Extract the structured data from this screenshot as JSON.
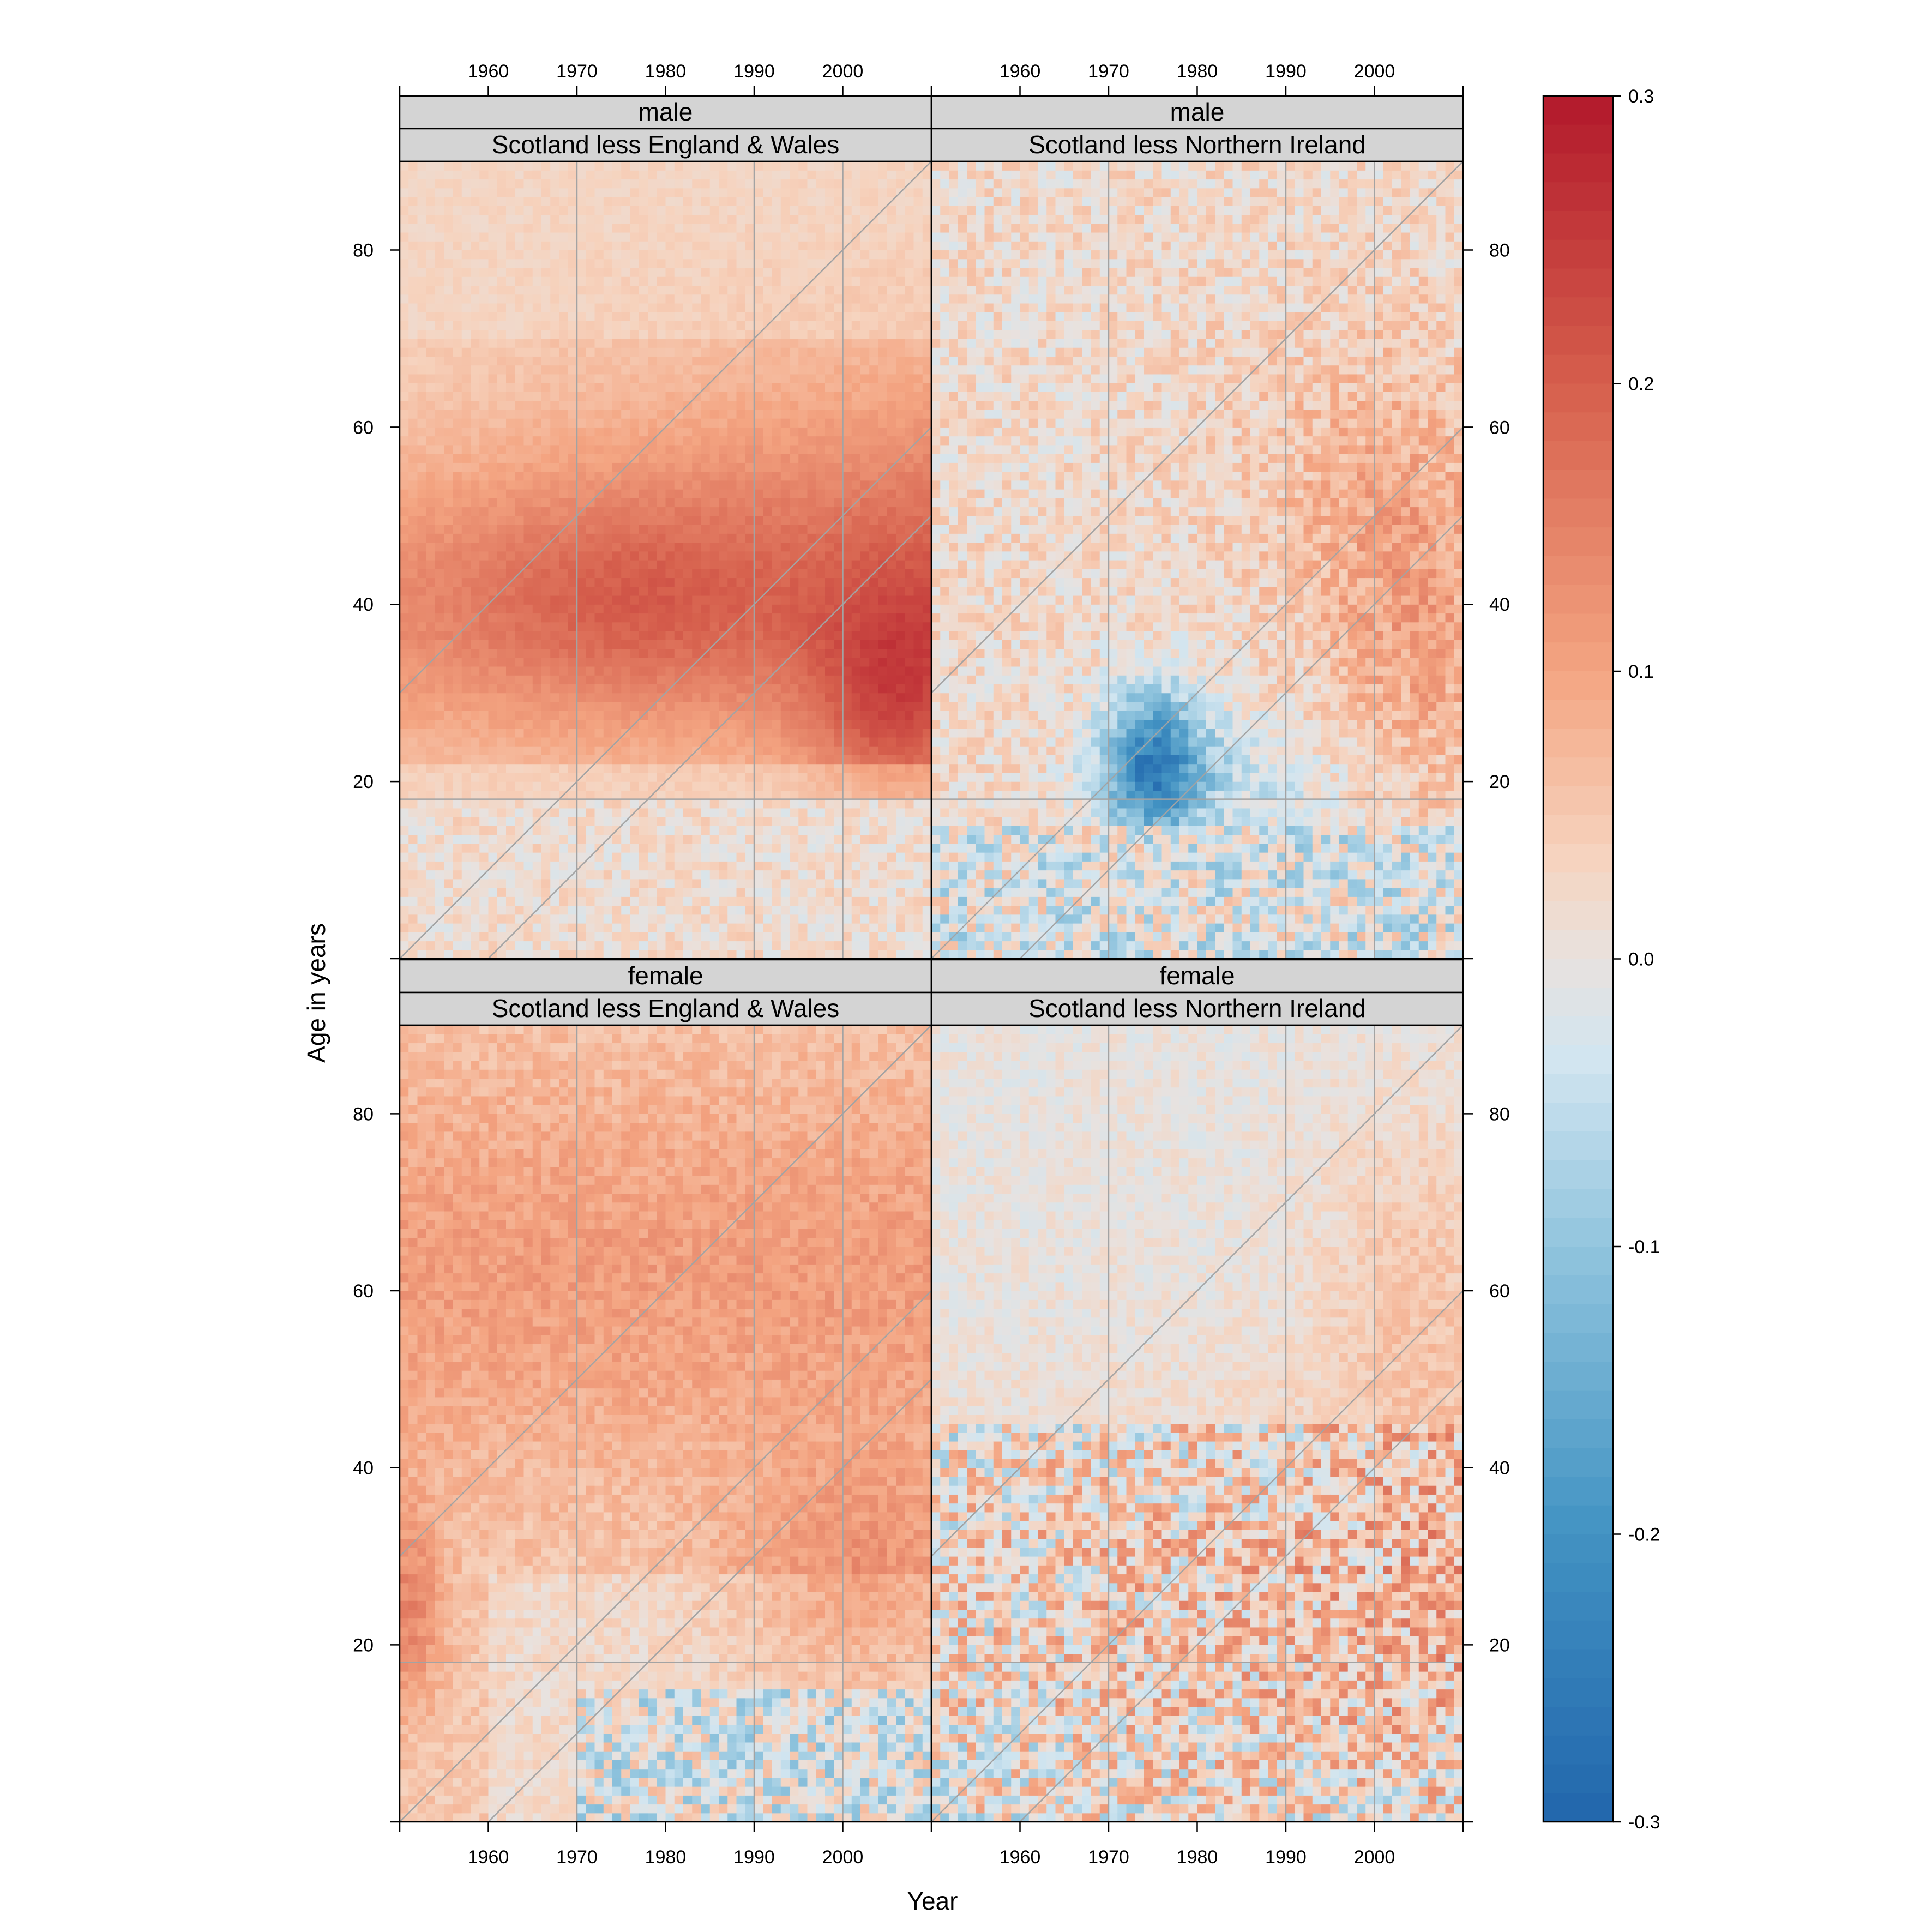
{
  "chart_data": {
    "type": "heatmap",
    "xlabel": "Year",
    "ylabel": "Age in years",
    "x_range": [
      1950,
      2010
    ],
    "y_range": [
      0,
      90
    ],
    "x_ticks": [
      1960,
      1970,
      1980,
      1990,
      2000
    ],
    "y_ticks": [
      20,
      40,
      60,
      80
    ],
    "grid": true,
    "reference_lines": {
      "vertical_years": [
        1970,
        1990,
        2000
      ],
      "horizontal_ages": [
        18
      ],
      "cohort_diagonals_birth_year": [
        1920,
        1950,
        1960
      ]
    },
    "colorbar": {
      "min": -0.3,
      "max": 0.3,
      "ticks": [
        -0.3,
        -0.2,
        -0.1,
        0.0,
        0.1,
        0.2,
        0.3
      ],
      "tick_labels": [
        "-0.3",
        "-0.2",
        "-0.1",
        "0.0",
        "0.1",
        "0.2",
        "0.3"
      ],
      "low_color": "#2166ac",
      "mid_color": "#e8e2df",
      "high_color": "#b2182b",
      "position": "right"
    },
    "panels": [
      {
        "sex": "male",
        "comparison": "Scotland less England & Wales",
        "approx_values": [
          {
            "years": "1950-2010",
            "ages": "70-90",
            "value": 0.04
          },
          {
            "years": "1950-1970",
            "ages": "25-55",
            "value": 0.12
          },
          {
            "years": "1980-2010",
            "ages": "40-65",
            "value": 0.16
          },
          {
            "years": "1995-2010",
            "ages": "20-40",
            "value": 0.22
          },
          {
            "years": "1950-2010",
            "ages": "0-18",
            "value": 0.02
          }
        ]
      },
      {
        "sex": "male",
        "comparison": "Scotland less Northern Ireland",
        "approx_values": [
          {
            "years": "1950-1990",
            "ages": "45-90",
            "value": 0.03
          },
          {
            "years": "1972-1980",
            "ages": "15-30",
            "value": -0.22
          },
          {
            "years": "1990-2010",
            "ages": "25-45",
            "value": 0.17
          },
          {
            "years": "1950-2010",
            "ages": "0-15",
            "value": -0.02
          }
        ]
      },
      {
        "sex": "female",
        "comparison": "Scotland less England & Wales",
        "approx_values": [
          {
            "years": "1950-2010",
            "ages": "45-80",
            "value": 0.1
          },
          {
            "years": "1950-1955",
            "ages": "15-30",
            "value": 0.17
          },
          {
            "years": "1985-2010",
            "ages": "15-40",
            "value": 0.12
          },
          {
            "years": "1985-2005",
            "ages": "0-15",
            "value": -0.06
          }
        ]
      },
      {
        "sex": "female",
        "comparison": "Scotland less Northern Ireland",
        "approx_values": [
          {
            "years": "1950-1990",
            "ages": "50-90",
            "value": 0.0
          },
          {
            "years": "1990-2010",
            "ages": "40-80",
            "value": 0.08
          },
          {
            "years": "1950-2010",
            "ages": "0-40",
            "value": 0.05
          }
        ]
      }
    ]
  }
}
